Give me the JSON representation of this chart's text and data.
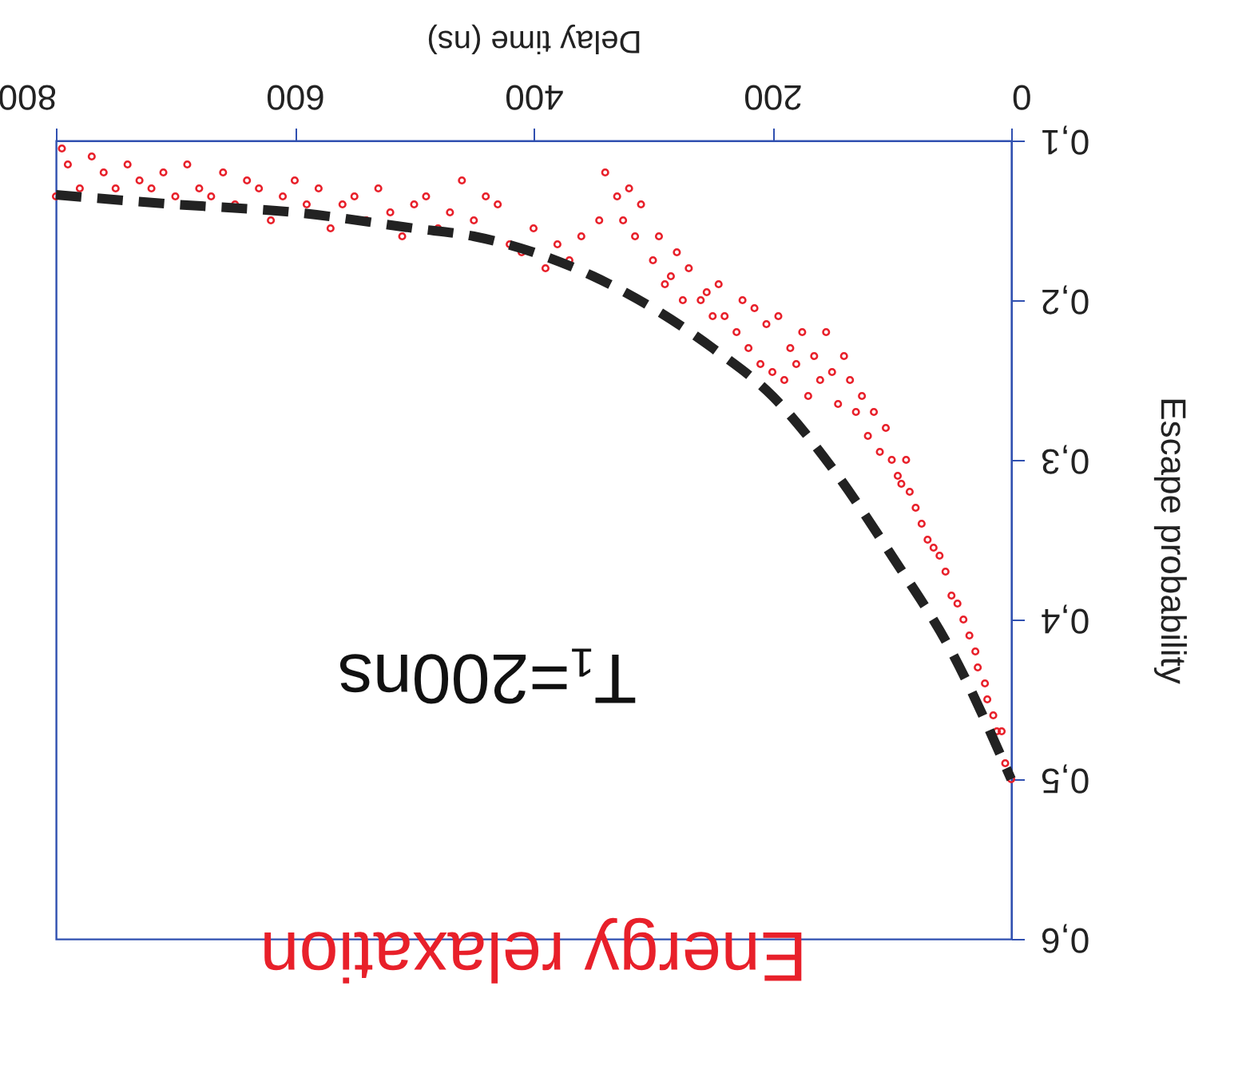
{
  "chart_data": {
    "type": "scatter",
    "title": "Energy relaxation",
    "xlabel": "Delay time (ns)",
    "ylabel": "Escape probability",
    "annotations": [
      "T₁=200ns"
    ],
    "xlim": [
      800,
      0
    ],
    "xticks": [
      0,
      200,
      400,
      600,
      800
    ],
    "ylim": [
      0.6,
      0.1
    ],
    "yticks": [
      {
        "value": 0.1,
        "label": "0,1"
      },
      {
        "value": 0.2,
        "label": "0,2"
      },
      {
        "value": 0.3,
        "label": "0,3"
      },
      {
        "value": 0.4,
        "label": "0,4"
      },
      {
        "value": 0.5,
        "label": "0,5"
      },
      {
        "value": 0.6,
        "label": "0,6"
      }
    ],
    "grid": false,
    "series": [
      {
        "type": "scatter",
        "color": "#e8202a",
        "marker": "circle",
        "x": [
          0,
          5,
          8,
          12,
          15,
          20,
          22,
          28,
          30,
          35,
          40,
          45,
          50,
          55,
          60,
          65,
          70,
          75,
          80,
          85,
          88,
          92,
          95,
          100,
          105,
          110,
          115,
          120,
          125,
          130,
          135,
          140,
          145,
          150,
          155,
          160,
          165,
          170,
          175,
          180,
          185,
          190,
          195,
          200,
          205,
          210,
          215,
          220,
          225,
          230,
          240,
          245,
          250,
          255,
          260,
          270,
          275,
          280,
          285,
          290,
          295,
          300,
          310,
          315,
          320,
          325,
          330,
          340,
          345,
          360,
          370,
          380,
          390,
          400,
          410,
          420,
          430,
          440,
          450,
          460,
          470,
          480,
          490,
          500,
          510,
          520,
          530,
          540,
          550,
          560,
          570,
          580,
          590,
          600,
          610,
          620,
          630,
          640,
          650,
          660,
          670,
          680,
          690,
          700,
          710,
          720,
          730,
          740,
          750,
          760,
          770,
          780,
          790,
          795,
          800
        ],
        "values": [
          0.5,
          0.49,
          0.47,
          0.47,
          0.46,
          0.45,
          0.44,
          0.43,
          0.42,
          0.41,
          0.4,
          0.39,
          0.385,
          0.37,
          0.36,
          0.355,
          0.35,
          0.34,
          0.33,
          0.32,
          0.3,
          0.315,
          0.31,
          0.3,
          0.28,
          0.295,
          0.27,
          0.285,
          0.26,
          0.27,
          0.25,
          0.235,
          0.265,
          0.245,
          0.22,
          0.25,
          0.235,
          0.26,
          0.22,
          0.24,
          0.23,
          0.25,
          0.21,
          0.245,
          0.215,
          0.24,
          0.205,
          0.23,
          0.2,
          0.22,
          0.21,
          0.19,
          0.21,
          0.195,
          0.2,
          0.18,
          0.2,
          0.17,
          0.185,
          0.19,
          0.16,
          0.175,
          0.14,
          0.16,
          0.13,
          0.15,
          0.135,
          0.12,
          0.15,
          0.16,
          0.175,
          0.165,
          0.18,
          0.155,
          0.17,
          0.165,
          0.14,
          0.135,
          0.15,
          0.125,
          0.145,
          0.155,
          0.135,
          0.14,
          0.16,
          0.145,
          0.13,
          0.15,
          0.135,
          0.14,
          0.155,
          0.13,
          0.14,
          0.125,
          0.135,
          0.15,
          0.13,
          0.125,
          0.14,
          0.12,
          0.135,
          0.13,
          0.115,
          0.135,
          0.12,
          0.13,
          0.125,
          0.115,
          0.13,
          0.12,
          0.11,
          0.13,
          0.115,
          0.105,
          0.135
        ]
      },
      {
        "type": "line",
        "color": "#222222",
        "line_style": "dashed",
        "marker": "none",
        "x": [
          0,
          50,
          100,
          150,
          200,
          250,
          300,
          350,
          400,
          450,
          500,
          600,
          700,
          800
        ],
        "values": [
          0.5,
          0.42,
          0.36,
          0.305,
          0.26,
          0.23,
          0.205,
          0.185,
          0.17,
          0.16,
          0.155,
          0.145,
          0.14,
          0.134
        ]
      }
    ]
  }
}
